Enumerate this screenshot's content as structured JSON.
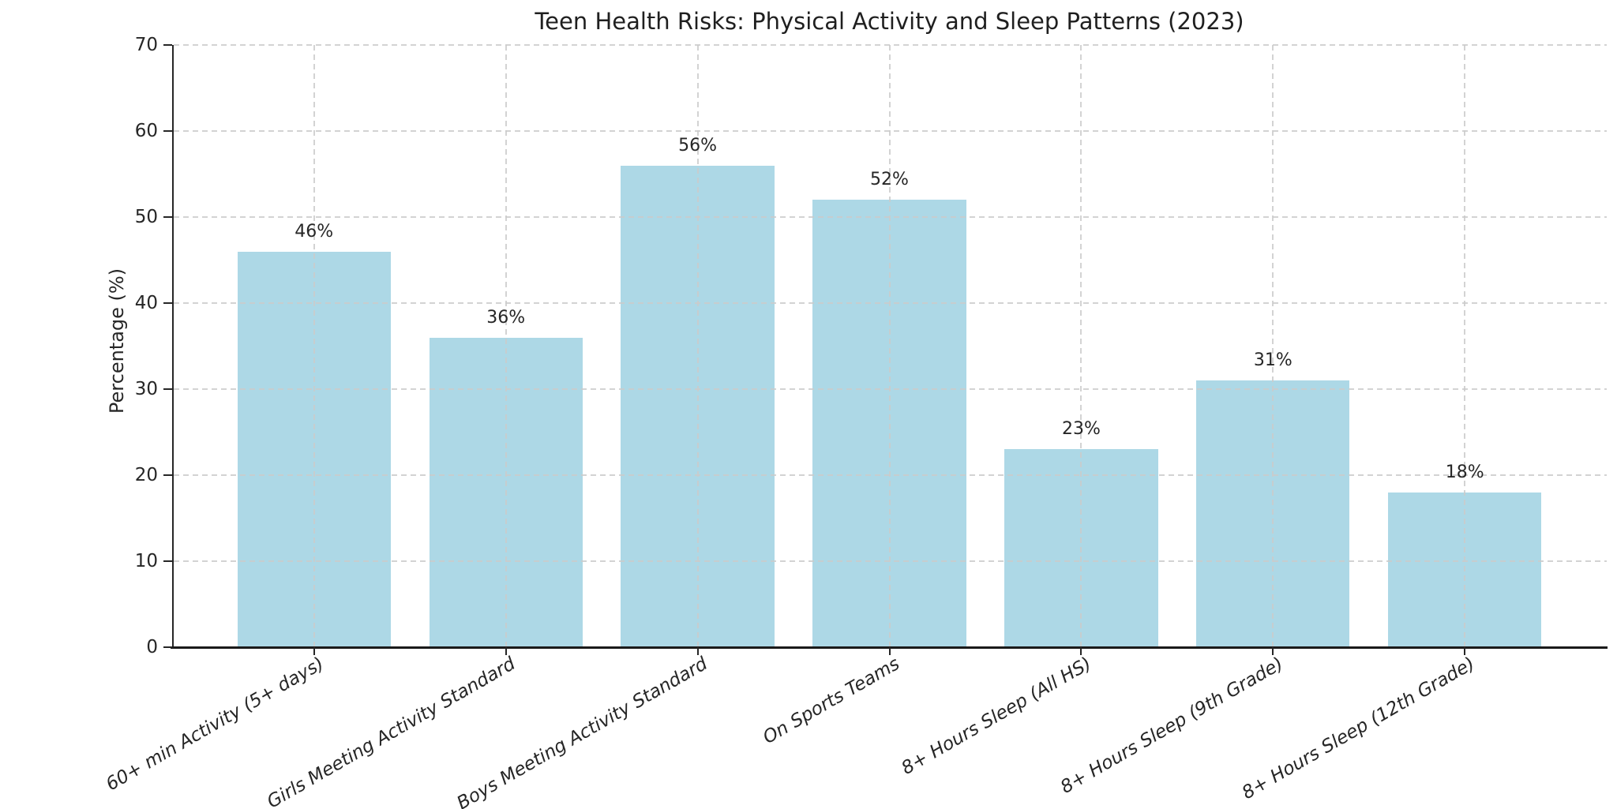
{
  "chart_data": {
    "type": "bar",
    "title": "Teen Health Risks: Physical Activity and Sleep Patterns (2023)",
    "xlabel": "",
    "ylabel": "Percentage (%)",
    "categories": [
      "60+ min Activity (5+ days)",
      "Girls Meeting Activity Standard",
      "Boys Meeting Activity Standard",
      "On Sports Teams",
      "8+ Hours Sleep (All HS)",
      "8+ Hours Sleep (9th Grade)",
      "8+ Hours Sleep (12th Grade)"
    ],
    "values": [
      46,
      36,
      56,
      52,
      23,
      31,
      18
    ],
    "value_labels": [
      "46%",
      "36%",
      "56%",
      "52%",
      "23%",
      "31%",
      "18%"
    ],
    "ylim": [
      0,
      70
    ],
    "yticks": [
      0,
      10,
      20,
      30,
      40,
      50,
      60,
      70
    ],
    "bar_color": "#ADD8E6",
    "grid": "dashed",
    "grid_color": "#cccccc",
    "axis_color": "#262626",
    "text_color": "#262626",
    "background": "#ffffff",
    "legend": "none",
    "xtick_style": "italic, rotated 30deg",
    "bar_width_fraction": 0.8
  }
}
